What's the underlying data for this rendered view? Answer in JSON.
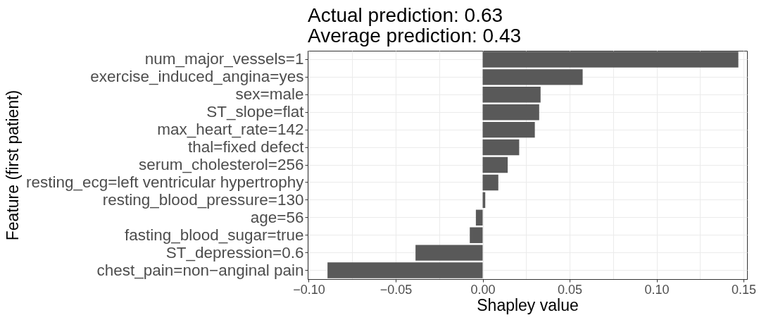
{
  "chart_data": {
    "type": "bar",
    "orientation": "horizontal",
    "title": "Actual prediction: 0.63\nAverage prediction: 0.43",
    "xlabel": "Shapley value",
    "ylabel": "Feature (first patient)",
    "categories": [
      "num_major_vessels=1",
      "exercise_induced_angina=yes",
      "sex=male",
      "ST_slope=flat",
      "max_heart_rate=142",
      "thal=fixed defect",
      "serum_cholesterol=256",
      "resting_ecg=left ventricular hypertrophy",
      "resting_blood_pressure=130",
      "age=56",
      "fasting_blood_sugar=true",
      "ST_depression=0.6",
      "chest_pain=non−anginal pain"
    ],
    "values": [
      0.147,
      0.0575,
      0.0333,
      0.0325,
      0.03,
      0.021,
      0.0144,
      0.009,
      0.0015,
      -0.0039,
      -0.0074,
      -0.0386,
      -0.0892
    ],
    "color": "#595959",
    "xlim": [
      -0.1006,
      0.152
    ],
    "xticks": [
      {
        "value": -0.1,
        "label": "−0.10"
      },
      {
        "value": -0.075,
        "label": null
      },
      {
        "value": -0.05,
        "label": "−0.05"
      },
      {
        "value": -0.025,
        "label": null
      },
      {
        "value": 0,
        "label": "0.00"
      },
      {
        "value": 0.025,
        "label": null
      },
      {
        "value": 0.05,
        "label": "0.05"
      },
      {
        "value": 0.075,
        "label": null
      },
      {
        "value": 0.1,
        "label": "0.10"
      },
      {
        "value": 0.125,
        "label": null
      },
      {
        "value": 0.15,
        "label": "0.15"
      }
    ],
    "grid": true
  }
}
